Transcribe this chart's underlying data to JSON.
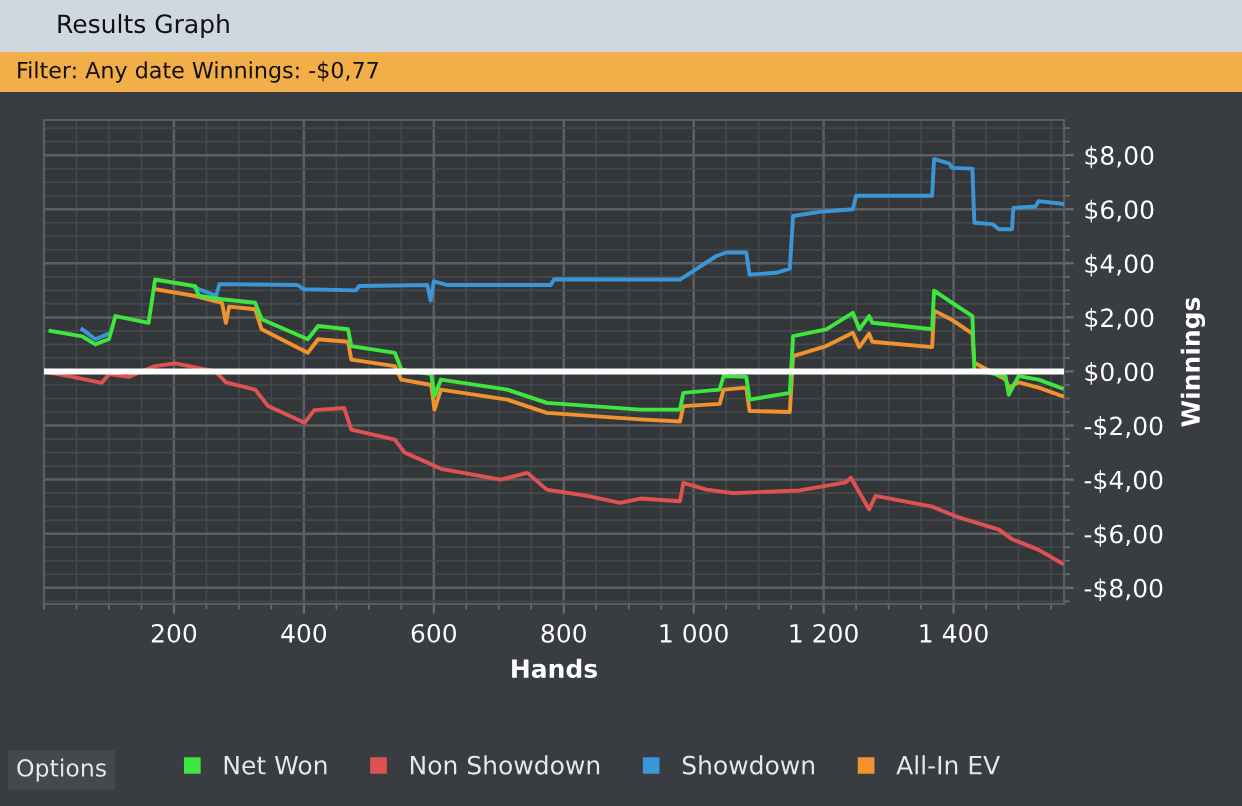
{
  "chart_data": {
    "type": "line",
    "title": "Results Graph",
    "subtitle": "Filter: Any date Winnings: -$0,77",
    "xlabel": "Hands",
    "ylabel": "Winnings",
    "annotations": [
      "Options"
    ],
    "xlim": [
      0,
      1570
    ],
    "ylim": [
      -8.6,
      9.3
    ],
    "xticks": [
      200,
      400,
      600,
      800,
      {
        "value": 1000,
        "label": "1 000"
      },
      {
        "value": 1200,
        "label": "1 200"
      },
      {
        "value": 1400,
        "label": "1 400"
      }
    ],
    "yticks": [
      {
        "value": 8,
        "label": "$8,00"
      },
      {
        "value": 6,
        "label": "$6,00"
      },
      {
        "value": 4,
        "label": "$4,00"
      },
      {
        "value": 2,
        "label": "$2,00"
      },
      {
        "value": 0,
        "label": "$0,00"
      },
      {
        "value": -2,
        "label": "-$2,00"
      },
      {
        "value": -4,
        "label": "-$4,00"
      },
      {
        "value": -6,
        "label": "-$6,00"
      },
      {
        "value": -8,
        "label": "-$8,00"
      }
    ],
    "grid": true,
    "legend": "bottom",
    "ref_lines": [
      {
        "axis": "y",
        "value": 0,
        "color": "#ffffff"
      }
    ],
    "series": [
      {
        "name": "Net Won",
        "color": "#3ee63e",
        "x": [
          10,
          59,
          79,
          100,
          110,
          161,
          171,
          233,
          238,
          274,
          325,
          335,
          406,
          422,
          468,
          473,
          540,
          550,
          596,
          601,
          611,
          713,
          774,
          918,
          979,
          984,
          1040,
          1046,
          1081,
          1086,
          1148,
          1153,
          1204,
          1245,
          1255,
          1270,
          1275,
          1367,
          1370,
          1398,
          1429,
          1432,
          1480,
          1485,
          1500,
          1531,
          1567
        ],
        "values": [
          1.5,
          1.3,
          1.0,
          1.2,
          2.05,
          1.8,
          3.4,
          3.15,
          2.8,
          2.67,
          2.54,
          1.93,
          1.19,
          1.68,
          1.56,
          0.94,
          0.69,
          0.07,
          -0.1,
          -0.91,
          -0.3,
          -0.67,
          -1.16,
          -1.41,
          -1.41,
          -0.79,
          -0.67,
          -0.17,
          -0.2,
          -1.04,
          -0.79,
          1.31,
          1.56,
          2.17,
          1.56,
          2.05,
          1.8,
          1.56,
          2.99,
          2.54,
          2.05,
          0.07,
          -0.17,
          -0.86,
          -0.17,
          -0.3,
          -0.62
        ]
      },
      {
        "name": "Non Showdown",
        "color": "#e05252",
        "x": [
          0,
          38,
          89,
          100,
          130,
          171,
          202,
          264,
          280,
          325,
          345,
          401,
          416,
          462,
          473,
          540,
          555,
          591,
          611,
          703,
          744,
          774,
          836,
          887,
          918,
          979,
          984,
          1020,
          1061,
          1163,
          1234,
          1242,
          1270,
          1280,
          1367,
          1408,
          1470,
          1490,
          1531,
          1567
        ],
        "values": [
          0,
          -0.17,
          -0.42,
          -0.1,
          -0.2,
          0.2,
          0.3,
          0,
          -0.4,
          -0.67,
          -1.28,
          -1.9,
          -1.43,
          -1.35,
          -2.15,
          -2.52,
          -3.0,
          -3.38,
          -3.6,
          -4.0,
          -3.75,
          -4.37,
          -4.6,
          -4.86,
          -4.7,
          -4.8,
          -4.12,
          -4.37,
          -4.5,
          -4.4,
          -4.1,
          -3.93,
          -5.1,
          -4.6,
          -5.0,
          -5.4,
          -5.85,
          -6.2,
          -6.6,
          -7.1
        ]
      },
      {
        "name": "Showdown",
        "color": "#3a96d6",
        "x": [
          59,
          79,
          100,
          110,
          161,
          171,
          233,
          265,
          270,
          390,
          400,
          480,
          485,
          590,
          595,
          600,
          620,
          780,
          785,
          918,
          979,
          1035,
          1050,
          1081,
          1086,
          1127,
          1148,
          1153,
          1194,
          1245,
          1250,
          1367,
          1370,
          1393,
          1398,
          1429,
          1432,
          1460,
          1470,
          1490,
          1492,
          1526,
          1531,
          1567
        ],
        "values": [
          1.56,
          1.19,
          1.4,
          null,
          null,
          null,
          3.09,
          2.8,
          3.23,
          3.2,
          3.04,
          3.0,
          3.16,
          3.2,
          2.62,
          3.33,
          3.2,
          3.2,
          3.41,
          3.4,
          3.4,
          4.27,
          4.4,
          4.4,
          3.58,
          3.65,
          3.8,
          5.75,
          5.9,
          6.0,
          6.5,
          6.5,
          7.85,
          7.7,
          7.53,
          7.5,
          5.5,
          5.45,
          5.26,
          5.26,
          6.05,
          6.1,
          6.3,
          6.2
        ]
      },
      {
        "name": "All-In EV",
        "color": "#f0922e",
        "x": [
          171,
          233,
          274,
          280,
          285,
          325,
          335,
          406,
          422,
          468,
          473,
          540,
          550,
          596,
          601,
          611,
          713,
          774,
          918,
          979,
          984,
          1040,
          1046,
          1081,
          1086,
          1148,
          1153,
          1204,
          1245,
          1255,
          1270,
          1275,
          1367,
          1370,
          1398,
          1429,
          1432,
          1480,
          1485,
          1500,
          1531,
          1567
        ],
        "values": [
          3.04,
          2.79,
          2.54,
          1.8,
          2.4,
          2.3,
          1.56,
          0.69,
          1.19,
          1.1,
          0.44,
          0.2,
          -0.3,
          -0.5,
          -1.41,
          -0.67,
          -1.04,
          -1.53,
          -1.77,
          -1.85,
          -1.28,
          -1.2,
          -0.67,
          -0.6,
          -1.46,
          -1.5,
          0.57,
          0.94,
          1.43,
          0.9,
          1.4,
          1.1,
          0.9,
          2.25,
          1.9,
          1.4,
          0.32,
          -0.3,
          -0.6,
          -0.4,
          -0.6,
          -0.91
        ]
      }
    ]
  }
}
